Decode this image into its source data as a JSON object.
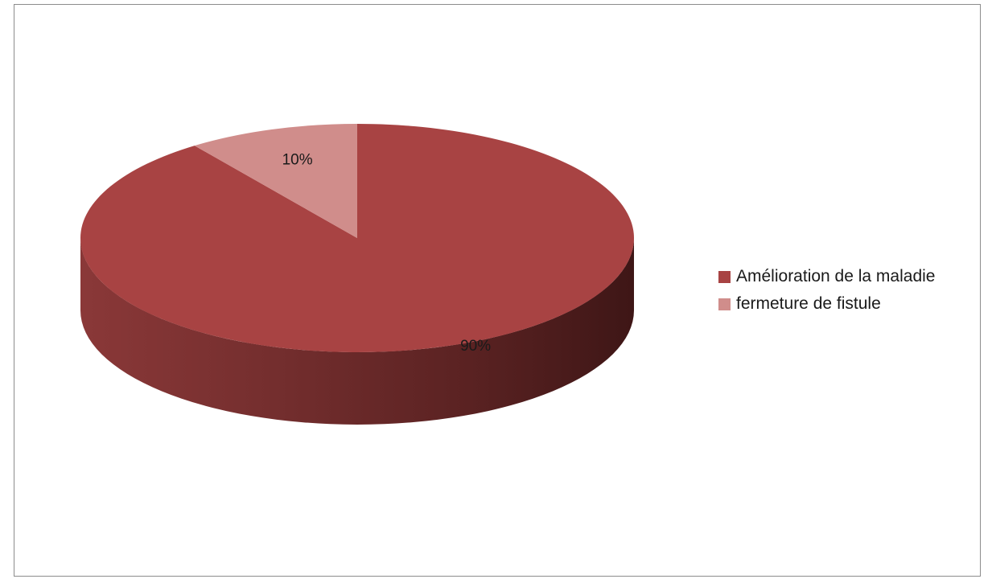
{
  "chart_data": {
    "type": "pie",
    "variant": "3d",
    "title": "",
    "categories": [
      "Amélioration de la maladie",
      "fermeture de fistule"
    ],
    "values": [
      90,
      10
    ],
    "labels": [
      "90%",
      "10%"
    ],
    "colors": [
      "#a84343",
      "#d08d8b"
    ],
    "side_colors": [
      "#7a2c2c",
      "#b06a69"
    ],
    "legend_position": "right"
  }
}
